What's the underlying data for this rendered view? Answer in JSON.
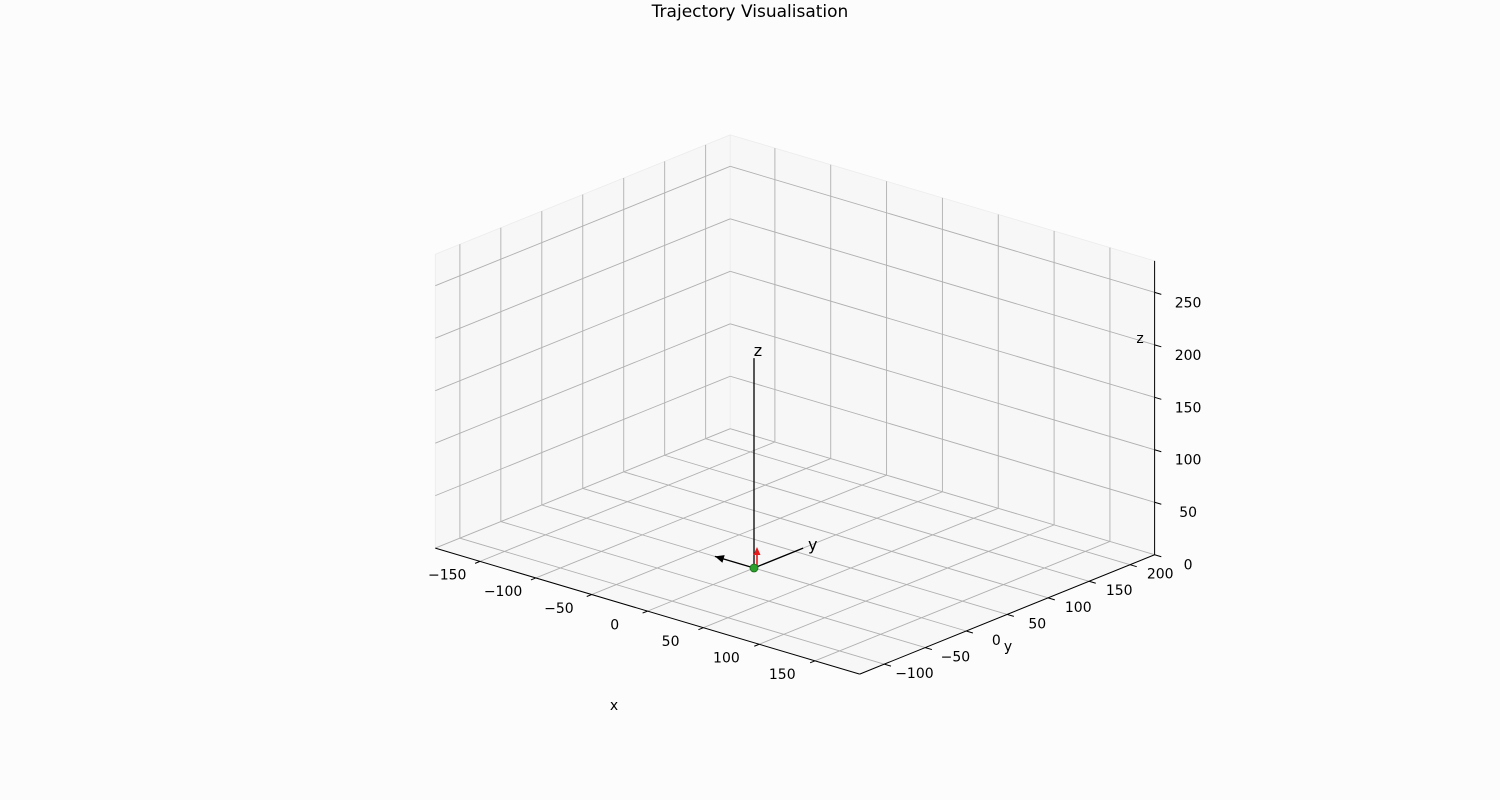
{
  "chart_data": {
    "type": "scatter",
    "projection": "3d",
    "title": "Trajectory Visualisation",
    "xlabel": "x",
    "ylabel": "y",
    "zlabel": "z",
    "xlim": [
      -190,
      190
    ],
    "ylim": [
      -130,
      230
    ],
    "zlim": [
      0,
      280
    ],
    "x_ticks": [
      -150,
      -100,
      -50,
      0,
      50,
      100,
      150
    ],
    "y_ticks": [
      -100,
      -50,
      0,
      50,
      100,
      150,
      200
    ],
    "z_ticks": [
      0,
      50,
      100,
      150,
      200,
      250
    ],
    "grid": true,
    "colors": {
      "start_marker": "#2ca02c",
      "heading_arrow": "#e41a1c",
      "frame_axes": "#000000",
      "grid": "#b0b0b0"
    },
    "points": [
      {
        "x": 0,
        "y": 0,
        "z": 0
      }
    ],
    "frame_axes": [
      {
        "label": "z",
        "from": [
          0,
          0,
          0
        ],
        "to": [
          0,
          0,
          200
        ]
      },
      {
        "label": "y",
        "from": [
          0,
          0,
          0
        ],
        "to": [
          0,
          60,
          0
        ]
      },
      {
        "label": "",
        "from": [
          0,
          0,
          0
        ],
        "to": [
          -35,
          0,
          0
        ]
      }
    ],
    "arrows": [
      {
        "from": [
          0,
          0,
          0
        ],
        "to": [
          0,
          0,
          20
        ]
      }
    ]
  }
}
